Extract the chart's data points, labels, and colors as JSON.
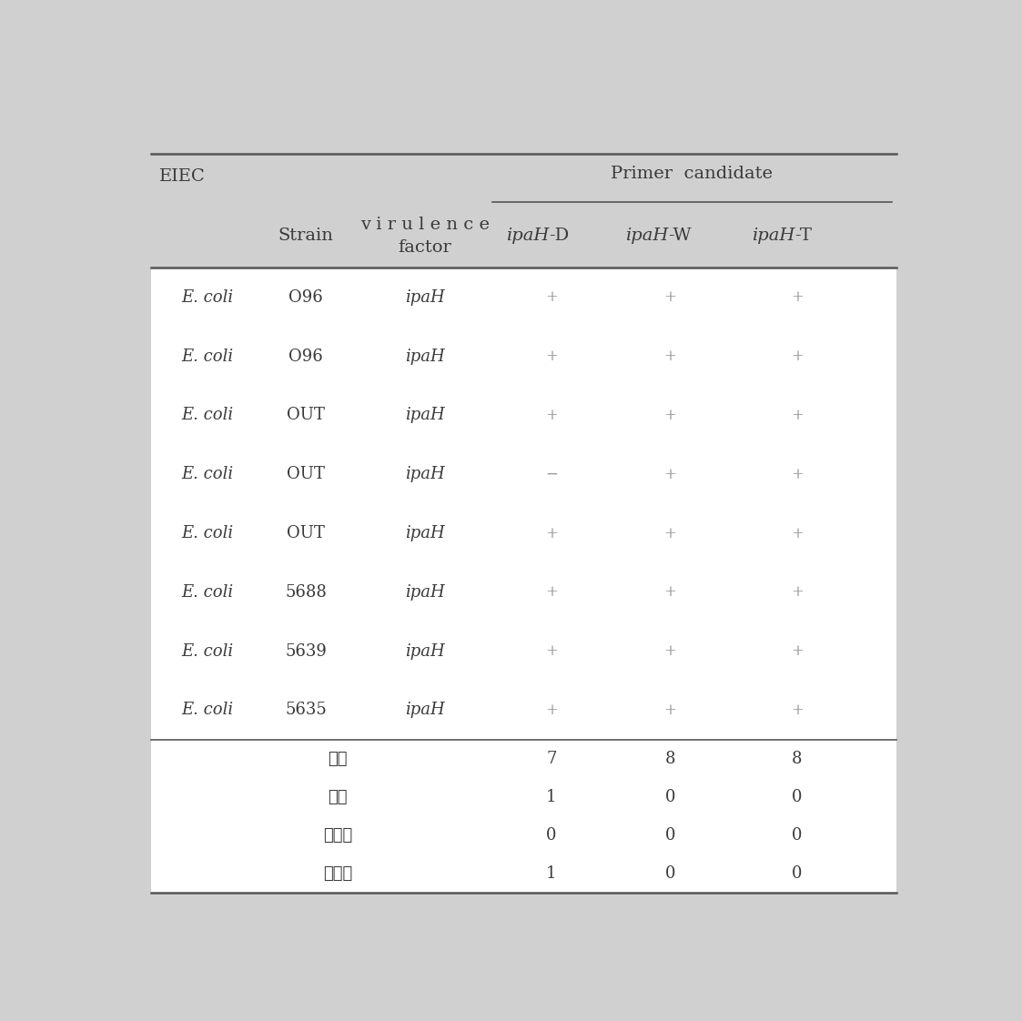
{
  "bg_color": "#d0d0d0",
  "body_bg": "#ffffff",
  "text_color": "#3a3a3a",
  "light_text": "#999999",
  "fig_width": 11.23,
  "fig_height": 11.22,
  "eiec_label": "EIEC",
  "primer_candidate_label": "Primer  candidate",
  "strain_label": "Strain",
  "virulence_label": "v i r u l e n c e\nfactor",
  "col_headers": [
    "ipaH-D",
    "ipaH-W",
    "ipaH-T"
  ],
  "rows": [
    {
      "ecoli": "E. coli",
      "strain": "O96",
      "virulence": "ipaH",
      "ipaH_D": "+",
      "ipaH_W": "+",
      "ipaH_T": "+"
    },
    {
      "ecoli": "E. coli",
      "strain": "O96",
      "virulence": "ipaH",
      "ipaH_D": "+",
      "ipaH_W": "+",
      "ipaH_T": "+"
    },
    {
      "ecoli": "E. coli",
      "strain": "OUT",
      "virulence": "ipaH",
      "ipaH_D": "+",
      "ipaH_W": "+",
      "ipaH_T": "+"
    },
    {
      "ecoli": "E. coli",
      "strain": "OUT",
      "virulence": "ipaH",
      "ipaH_D": "−",
      "ipaH_W": "+",
      "ipaH_T": "+"
    },
    {
      "ecoli": "E. coli",
      "strain": "OUT",
      "virulence": "ipaH",
      "ipaH_D": "+",
      "ipaH_W": "+",
      "ipaH_T": "+"
    },
    {
      "ecoli": "E. coli",
      "strain": "5688",
      "virulence": "ipaH",
      "ipaH_D": "+",
      "ipaH_W": "+",
      "ipaH_T": "+"
    },
    {
      "ecoli": "E. coli",
      "strain": "5639",
      "virulence": "ipaH",
      "ipaH_D": "+",
      "ipaH_W": "+",
      "ipaH_T": "+"
    },
    {
      "ecoli": "E. coli",
      "strain": "5635",
      "virulence": "ipaH",
      "ipaH_D": "+",
      "ipaH_W": "+",
      "ipaH_T": "+"
    }
  ],
  "summary_rows": [
    {
      "label": "양성",
      "ipaH_D": "7",
      "ipaH_W": "8",
      "ipaH_T": "8"
    },
    {
      "label": "음성",
      "ipaH_D": "1",
      "ipaH_W": "0",
      "ipaH_T": "0"
    },
    {
      "label": "위양성",
      "ipaH_D": "0",
      "ipaH_W": "0",
      "ipaH_T": "0"
    },
    {
      "label": "위음성",
      "ipaH_D": "1",
      "ipaH_W": "0",
      "ipaH_T": "0"
    }
  ]
}
